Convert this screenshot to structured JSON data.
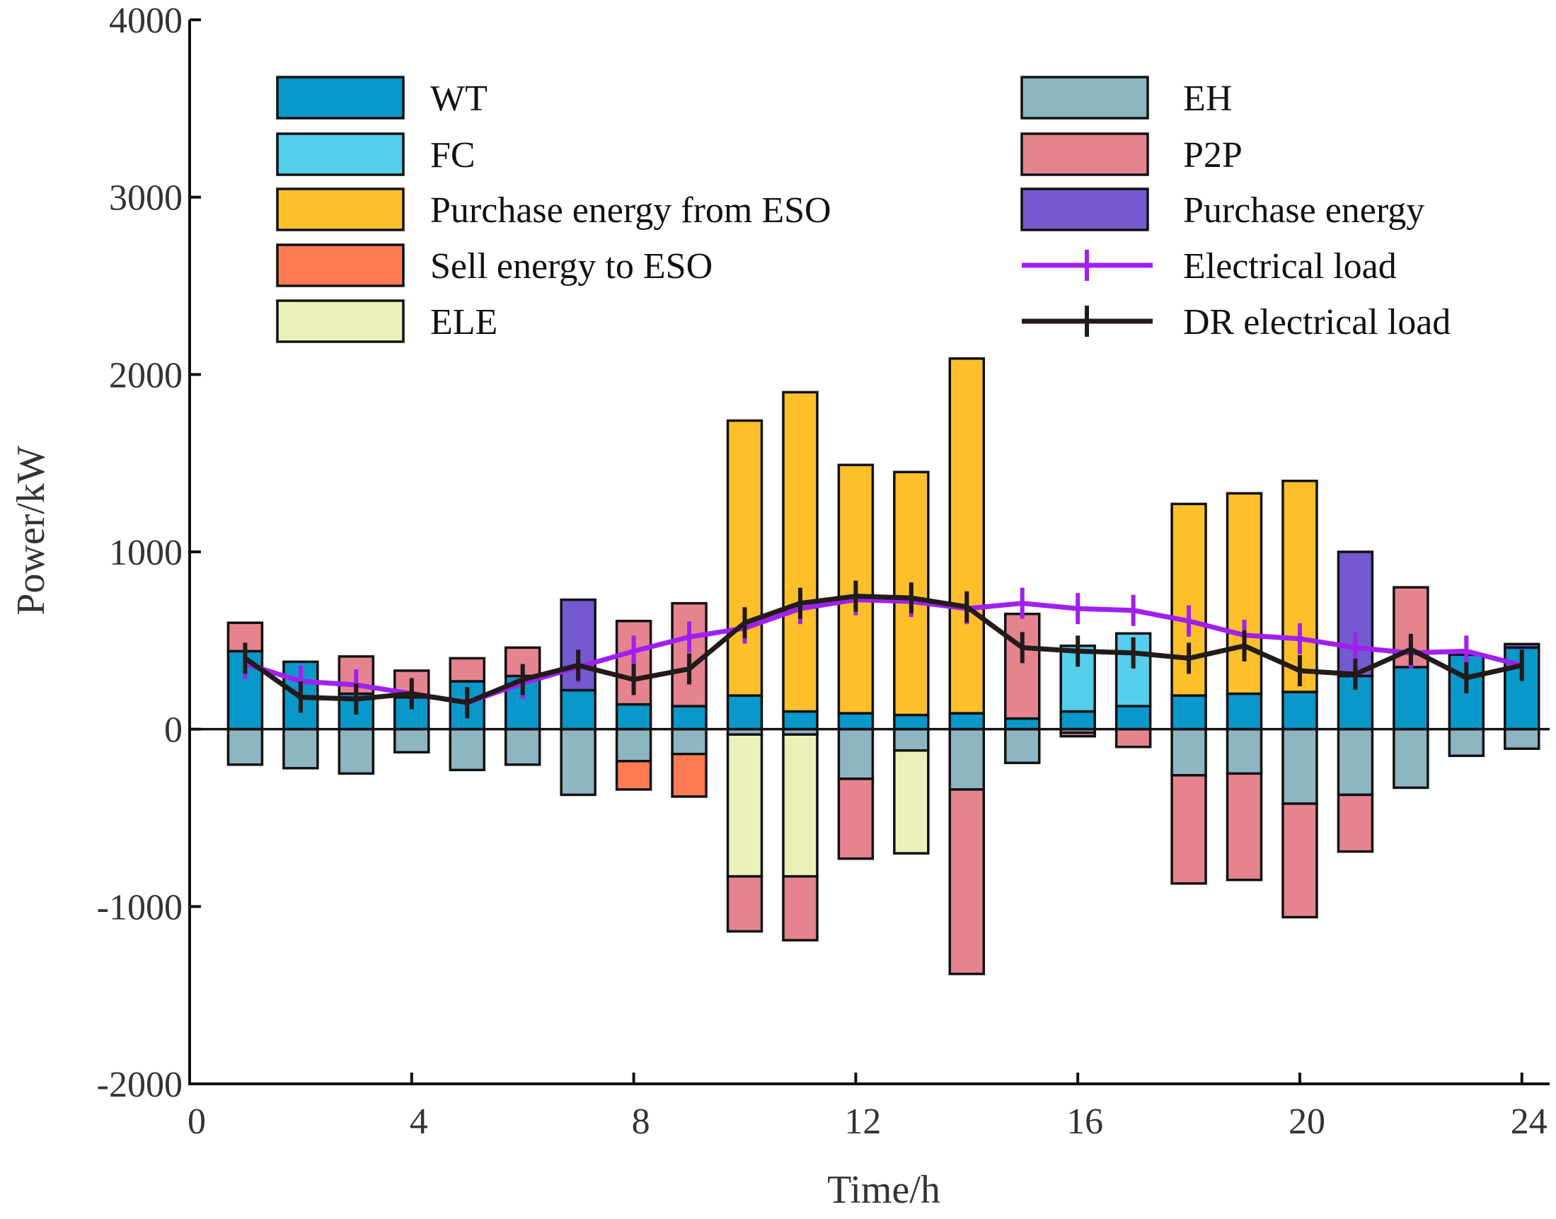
{
  "chart_data": {
    "type": "bar",
    "stacked": true,
    "xlabel": "Time/h",
    "ylabel": "Power/kW",
    "xlim": [
      0,
      24.5
    ],
    "ylim": [
      -2000,
      4000
    ],
    "xticks": [
      "0",
      "4",
      "8",
      "12",
      "16",
      "20",
      "24"
    ],
    "yticks": [
      "4000",
      "3000",
      "2000",
      "1000",
      "0",
      "-1000",
      "-2000"
    ],
    "x": [
      1,
      2,
      3,
      4,
      5,
      6,
      7,
      8,
      9,
      10,
      11,
      12,
      13,
      14,
      15,
      16,
      17,
      18,
      19,
      20,
      21,
      22,
      23,
      24
    ],
    "series": [
      {
        "name": "WT",
        "color": "#0A97C9",
        "side": "pos",
        "values": [
          440,
          380,
          200,
          180,
          270,
          300,
          220,
          140,
          130,
          190,
          100,
          90,
          80,
          90,
          60,
          100,
          130,
          190,
          200,
          210,
          300,
          350,
          420,
          460
        ]
      },
      {
        "name": "FC",
        "color": "#55CEEB",
        "side": "pos",
        "values": [
          0,
          0,
          0,
          0,
          0,
          0,
          0,
          0,
          0,
          0,
          0,
          0,
          0,
          0,
          0,
          370,
          410,
          0,
          0,
          0,
          0,
          0,
          0,
          0
        ]
      },
      {
        "name": "Purchase energy from ESO",
        "color": "#FDC02B",
        "side": "pos",
        "values": [
          0,
          0,
          0,
          0,
          0,
          0,
          0,
          0,
          0,
          1550,
          1800,
          1400,
          1370,
          2000,
          0,
          0,
          0,
          1080,
          1130,
          1190,
          0,
          0,
          0,
          0
        ]
      },
      {
        "name": "Sell energy to ESO",
        "color": "#FF7B54",
        "side": "neg",
        "values": [
          0,
          0,
          0,
          0,
          0,
          0,
          0,
          -160,
          -240,
          0,
          0,
          0,
          0,
          0,
          0,
          0,
          0,
          0,
          0,
          0,
          0,
          0,
          0,
          0
        ]
      },
      {
        "name": "ELE",
        "color": "#EBF0B8",
        "side": "neg",
        "values": [
          0,
          0,
          0,
          0,
          0,
          0,
          0,
          0,
          0,
          -800,
          -800,
          0,
          -580,
          0,
          0,
          0,
          0,
          0,
          0,
          0,
          0,
          0,
          0,
          0
        ]
      },
      {
        "name": "EH",
        "color": "#8DB5C2",
        "side": "neg",
        "values": [
          -200,
          -220,
          -250,
          -130,
          -230,
          -200,
          -370,
          -180,
          -140,
          -30,
          -30,
          -280,
          -120,
          -340,
          -190,
          -20,
          0,
          -260,
          -250,
          -420,
          -370,
          -330,
          -150,
          -110
        ]
      },
      {
        "name": "P2P",
        "color": "#E5848F",
        "side": "both",
        "values": [
          160,
          0,
          210,
          150,
          130,
          160,
          0,
          470,
          580,
          -310,
          -360,
          -450,
          0,
          -1040,
          590,
          -20,
          -100,
          -610,
          -600,
          -640,
          -320,
          450,
          0,
          0
        ]
      },
      {
        "name": "Purchase energy",
        "color": "#7559CF",
        "side": "pos",
        "values": [
          0,
          0,
          0,
          0,
          0,
          0,
          510,
          0,
          0,
          0,
          0,
          0,
          0,
          0,
          0,
          0,
          0,
          0,
          0,
          0,
          700,
          0,
          0,
          20
        ]
      }
    ],
    "lines": [
      {
        "name": "Electrical load",
        "color": "#A020F0",
        "values": [
          370,
          270,
          250,
          200,
          150,
          260,
          350,
          440,
          520,
          570,
          680,
          730,
          720,
          680,
          710,
          680,
          670,
          610,
          530,
          510,
          460,
          430,
          440,
          360
        ]
      },
      {
        "name": "DR electrical load",
        "color": "#231A1A",
        "values": [
          400,
          180,
          170,
          200,
          150,
          280,
          360,
          280,
          340,
          600,
          710,
          750,
          740,
          690,
          460,
          440,
          430,
          400,
          470,
          330,
          310,
          450,
          290,
          360
        ]
      }
    ],
    "legend": {
      "left": [
        "WT",
        "FC",
        "Purchase energy from ESO",
        "Sell energy to ESO",
        "ELE"
      ],
      "right": [
        "EH",
        "P2P",
        "Purchase energy",
        "Electrical load",
        "DR electrical load"
      ],
      "placement": "top"
    }
  }
}
